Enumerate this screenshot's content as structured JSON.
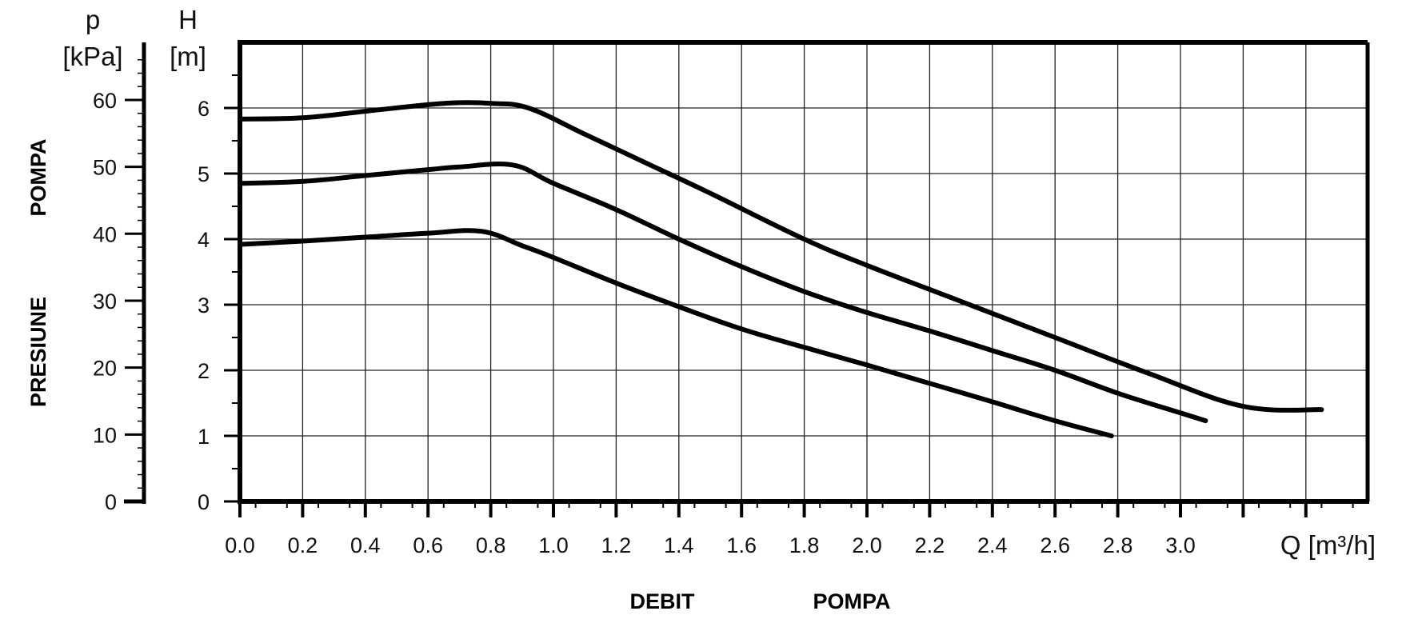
{
  "chart_data": {
    "type": "line",
    "xlabel": "Q [m³/h]",
    "y_left_label_symbol": "p",
    "y_left_label_unit": "[kPa]",
    "y_right_label_symbol": "H",
    "y_right_label_unit": "[m]",
    "side_label_top": "POMPA",
    "side_label_bottom": "PRESIUNE",
    "bottom_label_left": "DEBIT",
    "bottom_label_right": "POMPA",
    "xlim": [
      0,
      3.6
    ],
    "ylim_H": [
      0,
      7
    ],
    "ylim_p": [
      0,
      68.6
    ],
    "x_ticks": [
      "0.0",
      "0.2",
      "0.4",
      "0.6",
      "0.8",
      "1.0",
      "1.2",
      "1.4",
      "1.6",
      "1.8",
      "2.0",
      "2.2",
      "2.4",
      "2.6",
      "2.8",
      "3.0"
    ],
    "H_ticks": [
      "0",
      "1",
      "2",
      "3",
      "4",
      "5",
      "6"
    ],
    "p_ticks": [
      "0",
      "10",
      "20",
      "30",
      "40",
      "50",
      "60"
    ],
    "grid": true,
    "series": [
      {
        "x": [
          0.0,
          0.2,
          0.4,
          0.6,
          0.7,
          0.8,
          0.92,
          1.1,
          1.3,
          1.5,
          1.8,
          2.0,
          2.3,
          2.6,
          2.9,
          3.2,
          3.45
        ],
        "y": [
          5.83,
          5.85,
          5.95,
          6.05,
          6.08,
          6.07,
          6.0,
          5.6,
          5.15,
          4.7,
          4.0,
          3.6,
          3.05,
          2.5,
          1.95,
          1.45,
          1.4
        ]
      },
      {
        "x": [
          0.0,
          0.2,
          0.4,
          0.6,
          0.7,
          0.87,
          1.0,
          1.2,
          1.4,
          1.6,
          1.8,
          2.0,
          2.2,
          2.4,
          2.6,
          2.8,
          3.0,
          3.08
        ],
        "y": [
          4.85,
          4.88,
          4.97,
          5.06,
          5.1,
          5.13,
          4.85,
          4.45,
          4.0,
          3.58,
          3.2,
          2.88,
          2.6,
          2.3,
          2.0,
          1.65,
          1.35,
          1.23
        ]
      },
      {
        "x": [
          0.0,
          0.2,
          0.4,
          0.6,
          0.77,
          0.9,
          1.0,
          1.2,
          1.4,
          1.6,
          1.8,
          2.0,
          2.2,
          2.4,
          2.6,
          2.78
        ],
        "y": [
          3.92,
          3.97,
          4.03,
          4.09,
          4.12,
          3.9,
          3.72,
          3.33,
          2.97,
          2.63,
          2.35,
          2.08,
          1.8,
          1.52,
          1.23,
          1.0
        ]
      }
    ]
  }
}
